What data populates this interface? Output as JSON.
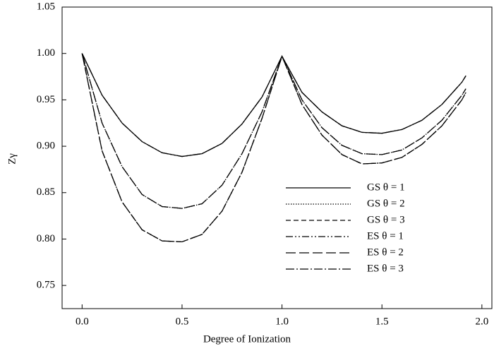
{
  "chart_data": {
    "type": "line",
    "x_label": "Degree of Ionization",
    "y_label": "Zγ",
    "x": [
      0,
      0.1,
      0.2,
      0.3,
      0.4,
      0.5,
      0.6,
      0.7,
      0.8,
      0.9,
      1.0,
      1.1,
      1.2,
      1.3,
      1.4,
      1.5,
      1.6,
      1.7,
      1.8,
      1.9,
      1.92
    ],
    "series": [
      {
        "name": "GS θ = 1",
        "color": "#000000",
        "dash": "",
        "values": [
          1.0,
          0.955,
          0.925,
          0.905,
          0.893,
          0.889,
          0.892,
          0.903,
          0.924,
          0.953,
          0.997,
          0.958,
          0.937,
          0.922,
          0.915,
          0.914,
          0.918,
          0.928,
          0.945,
          0.969,
          0.976
        ]
      },
      {
        "name": "GS θ = 2",
        "color": "#000000",
        "dash": "1.5 2",
        "values": [
          1.0,
          0.925,
          0.878,
          0.848,
          0.835,
          0.833,
          0.838,
          0.858,
          0.892,
          0.937,
          0.997,
          0.95,
          0.92,
          0.901,
          0.892,
          0.891,
          0.896,
          0.909,
          0.928,
          0.955,
          0.962
        ]
      },
      {
        "name": "GS θ = 3",
        "color": "#000000",
        "dash": "7 4",
        "values": [
          1.0,
          0.895,
          0.84,
          0.81,
          0.798,
          0.797,
          0.805,
          0.83,
          0.872,
          0.93,
          0.997,
          0.945,
          0.912,
          0.891,
          0.881,
          0.882,
          0.888,
          0.902,
          0.922,
          0.95,
          0.958
        ]
      },
      {
        "name": "ES θ = 1",
        "color": "#000000",
        "dash": "10 3 2 3 2 3",
        "values": [
          1.0,
          0.955,
          0.925,
          0.905,
          0.893,
          0.889,
          0.892,
          0.903,
          0.924,
          0.953,
          0.997,
          0.958,
          0.937,
          0.922,
          0.915,
          0.914,
          0.918,
          0.928,
          0.945,
          0.969,
          0.976
        ]
      },
      {
        "name": "ES θ = 2",
        "color": "#000000",
        "dash": "14 5",
        "values": [
          1.0,
          0.925,
          0.878,
          0.848,
          0.835,
          0.833,
          0.838,
          0.858,
          0.892,
          0.937,
          0.997,
          0.95,
          0.92,
          0.901,
          0.892,
          0.891,
          0.896,
          0.909,
          0.928,
          0.955,
          0.962
        ]
      },
      {
        "name": "ES θ = 3",
        "color": "#000000",
        "dash": "12 3 2 3",
        "values": [
          1.0,
          0.895,
          0.84,
          0.81,
          0.798,
          0.797,
          0.805,
          0.83,
          0.872,
          0.93,
          0.997,
          0.945,
          0.912,
          0.891,
          0.881,
          0.882,
          0.888,
          0.902,
          0.922,
          0.95,
          0.958
        ]
      }
    ],
    "xlim": [
      -0.1,
      2.05
    ],
    "xticks": [
      {
        "value": 0,
        "label": "0.0"
      },
      {
        "value": 0.5,
        "label": "0.5"
      },
      {
        "value": 1,
        "label": "1.0"
      },
      {
        "value": 1.5,
        "label": "1.5"
      },
      {
        "value": 2,
        "label": "2.0"
      }
    ],
    "ylim": [
      0.725,
      1.05
    ],
    "yticks": [
      0.75,
      {
        "value": 0.8,
        "label": "0.80"
      },
      0.85,
      {
        "value": 0.9,
        "label": "0.90"
      },
      0.95,
      {
        "value": 1,
        "label": "1.00"
      },
      1.05
    ],
    "legend": "lower right",
    "grid": false
  }
}
